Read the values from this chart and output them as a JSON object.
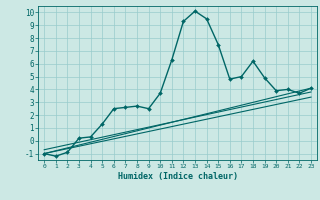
{
  "title": "",
  "xlabel": "Humidex (Indice chaleur)",
  "xlim": [
    -0.5,
    23.5
  ],
  "ylim": [
    -1.5,
    10.5
  ],
  "xticks": [
    0,
    1,
    2,
    3,
    4,
    5,
    6,
    7,
    8,
    9,
    10,
    11,
    12,
    13,
    14,
    15,
    16,
    17,
    18,
    19,
    20,
    21,
    22,
    23
  ],
  "yticks": [
    -1,
    0,
    1,
    2,
    3,
    4,
    5,
    6,
    7,
    8,
    9,
    10
  ],
  "bg_color": "#cce8e4",
  "grid_color": "#99cccc",
  "line_color": "#006666",
  "line_width": 1.0,
  "marker_size": 2.0,
  "series": [
    [
      0,
      -1
    ],
    [
      1,
      -1.2
    ],
    [
      2,
      -0.9
    ],
    [
      3,
      0.2
    ],
    [
      4,
      0.3
    ],
    [
      5,
      1.3
    ],
    [
      6,
      2.5
    ],
    [
      7,
      2.6
    ],
    [
      8,
      2.7
    ],
    [
      9,
      2.5
    ],
    [
      10,
      3.7
    ],
    [
      11,
      6.3
    ],
    [
      12,
      9.3
    ],
    [
      13,
      10.1
    ],
    [
      14,
      9.5
    ],
    [
      15,
      7.5
    ],
    [
      16,
      4.8
    ],
    [
      17,
      5.0
    ],
    [
      18,
      6.2
    ],
    [
      19,
      4.9
    ],
    [
      20,
      3.9
    ],
    [
      21,
      4.0
    ],
    [
      22,
      3.7
    ],
    [
      23,
      4.1
    ]
  ],
  "linear_lines": [
    [
      [
        0,
        -1.0
      ],
      [
        23,
        4.1
      ]
    ],
    [
      [
        0,
        -1.0
      ],
      [
        23,
        3.4
      ]
    ],
    [
      [
        0,
        -0.7
      ],
      [
        23,
        3.8
      ]
    ]
  ]
}
